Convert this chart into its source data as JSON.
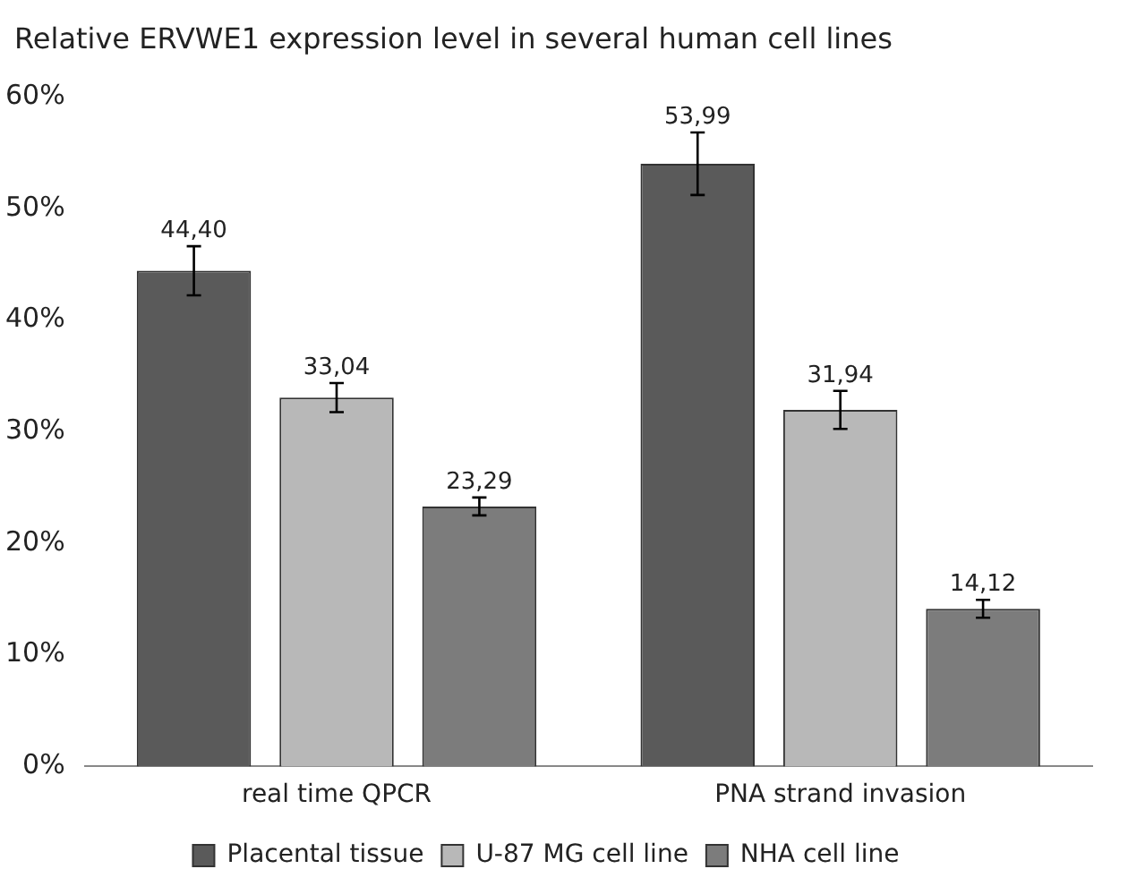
{
  "chart_data": {
    "type": "bar",
    "title": "Relative ERVWE1 expression level in several human cell lines",
    "categories": [
      "real time QPCR",
      "PNA strand invasion"
    ],
    "series": [
      {
        "name": "Placental tissue",
        "color": "#5a5a5a",
        "values": [
          44.4,
          53.99
        ],
        "errors": [
          2.2,
          2.8
        ],
        "value_labels": [
          "44,40",
          "53,99"
        ]
      },
      {
        "name": "U-87 MG cell line",
        "color": "#b8b8b8",
        "values": [
          33.04,
          31.94
        ],
        "errors": [
          1.3,
          1.7
        ],
        "value_labels": [
          "33,04",
          "31,94"
        ]
      },
      {
        "name": "NHA cell line",
        "color": "#7c7c7c",
        "values": [
          23.29,
          14.12
        ],
        "errors": [
          0.8,
          0.8
        ],
        "value_labels": [
          "23,29",
          "14,12"
        ]
      }
    ],
    "ylim": [
      0,
      60
    ],
    "yticks": [
      {
        "value": 0,
        "label": "0%"
      },
      {
        "value": 10,
        "label": "10%"
      },
      {
        "value": 20,
        "label": "20%"
      },
      {
        "value": 30,
        "label": "30%"
      },
      {
        "value": 40,
        "label": "40%"
      },
      {
        "value": 50,
        "label": "50%"
      },
      {
        "value": 60,
        "label": "60%"
      }
    ],
    "grid": false,
    "legend": "bottom"
  }
}
